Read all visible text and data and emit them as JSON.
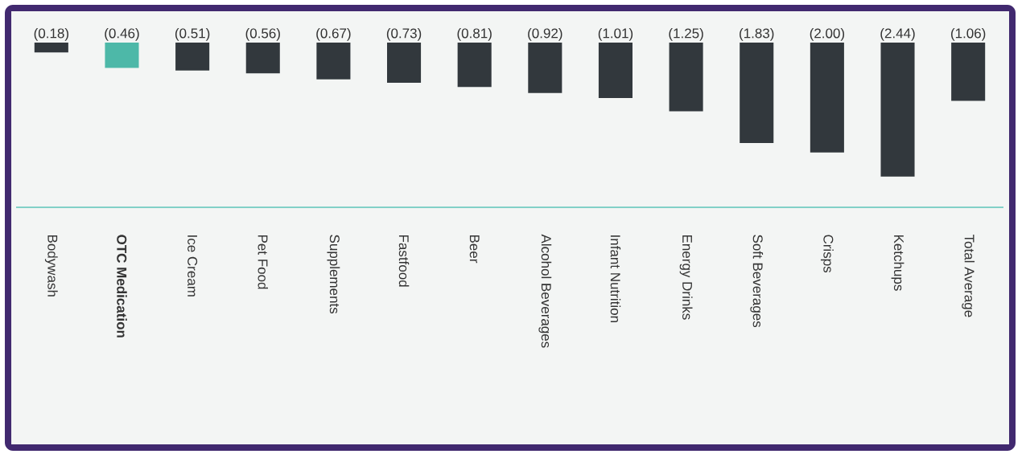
{
  "chart_data": {
    "type": "bar",
    "categories": [
      "Bodywash",
      "OTC Medication",
      "Ice Cream",
      "Pet Food",
      "Supplements",
      "Fastfood",
      "Beer",
      "Alcohol Beverages",
      "Infant Nutrition",
      "Energy Drinks",
      "Soft Beverages",
      "Crisps",
      "Ketchups",
      "Total Average"
    ],
    "values": [
      -0.18,
      -0.46,
      -0.51,
      -0.56,
      -0.67,
      -0.73,
      -0.81,
      -0.92,
      -1.01,
      -1.25,
      -1.83,
      -2.0,
      -2.44,
      -1.06
    ],
    "value_labels": [
      "(0.18)",
      "(0.46)",
      "(0.51)",
      "(0.56)",
      "(0.67)",
      "(0.73)",
      "(0.81)",
      "(0.92)",
      "(1.01)",
      "(1.25)",
      "(1.83)",
      "(2.00)",
      "(2.44)",
      "(1.06)"
    ],
    "colors": [
      "#32383d",
      "#4db8a8",
      "#32383d",
      "#32383d",
      "#32383d",
      "#32383d",
      "#32383d",
      "#32383d",
      "#32383d",
      "#32383d",
      "#32383d",
      "#32383d",
      "#32383d",
      "#32383d"
    ],
    "ylim": [
      -3.0,
      0
    ],
    "tick_labels": "x"
  }
}
